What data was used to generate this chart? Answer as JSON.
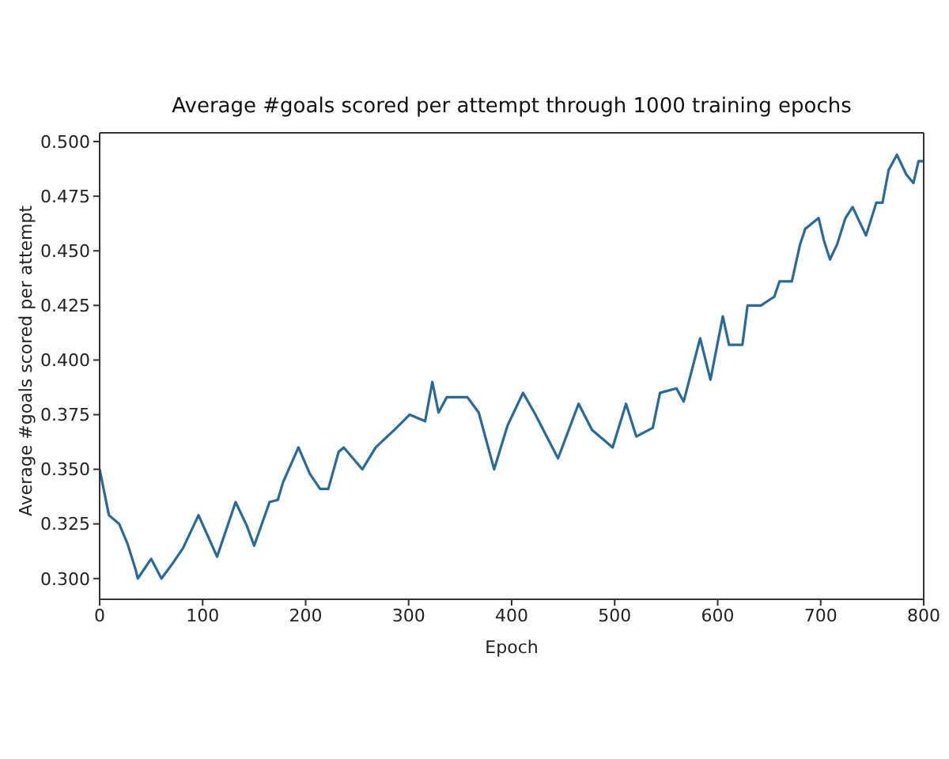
{
  "chart_data": {
    "type": "line",
    "title": "Average #goals scored per attempt through 1000 training epochs",
    "xlabel": "Epoch",
    "ylabel": "Average #goals scored per attempt",
    "x": [
      0,
      9,
      19,
      27,
      35,
      37,
      50,
      60,
      71,
      81,
      96,
      114,
      132,
      143,
      150,
      165,
      173,
      178,
      193,
      204,
      214,
      222,
      232,
      237,
      255,
      268,
      286,
      301,
      316,
      323,
      329,
      337,
      357,
      368,
      383,
      396,
      411,
      422,
      445,
      465,
      478,
      498,
      511,
      521,
      537,
      544,
      560,
      567,
      583,
      593,
      605,
      611,
      624,
      629,
      642,
      655,
      660,
      672,
      680,
      685,
      698,
      703,
      709,
      716,
      724,
      731,
      744,
      754,
      760,
      766,
      774,
      783,
      790,
      795,
      800
    ],
    "series": [
      {
        "color": "#2b6a96",
        "values": [
          0.35,
          0.329,
          0.325,
          0.316,
          0.304,
          0.3,
          0.309,
          0.3,
          0.307,
          0.314,
          0.329,
          0.31,
          0.335,
          0.324,
          0.315,
          0.335,
          0.336,
          0.344,
          0.36,
          0.348,
          0.341,
          0.341,
          0.358,
          0.36,
          0.35,
          0.36,
          0.368,
          0.375,
          0.372,
          0.39,
          0.376,
          0.383,
          0.383,
          0.376,
          0.35,
          0.37,
          0.385,
          0.376,
          0.355,
          0.38,
          0.368,
          0.36,
          0.38,
          0.365,
          0.369,
          0.385,
          0.387,
          0.381,
          0.41,
          0.391,
          0.42,
          0.407,
          0.407,
          0.425,
          0.425,
          0.429,
          0.436,
          0.436,
          0.453,
          0.46,
          0.465,
          0.455,
          0.446,
          0.453,
          0.465,
          0.47,
          0.457,
          0.472,
          0.472,
          0.487,
          0.494,
          0.485,
          0.481,
          0.491,
          0.491
        ]
      }
    ],
    "xlim": [
      0,
      800
    ],
    "xticks": [
      0,
      100,
      200,
      300,
      400,
      500,
      600,
      700,
      800
    ],
    "ylim": [
      0.2905,
      0.504
    ],
    "yticks": [
      {
        "value": 0.3,
        "label": "0.300"
      },
      {
        "value": 0.325,
        "label": "0.325"
      },
      {
        "value": 0.35,
        "label": "0.350"
      },
      {
        "value": 0.375,
        "label": "0.375"
      },
      {
        "value": 0.4,
        "label": "0.400"
      },
      {
        "value": 0.425,
        "label": "0.425"
      },
      {
        "value": 0.45,
        "label": "0.450"
      },
      {
        "value": 0.475,
        "label": "0.475"
      },
      {
        "value": 0.5,
        "label": "0.500"
      }
    ],
    "grid": false,
    "legend": false,
    "marker": "none",
    "line_style": "solid"
  }
}
